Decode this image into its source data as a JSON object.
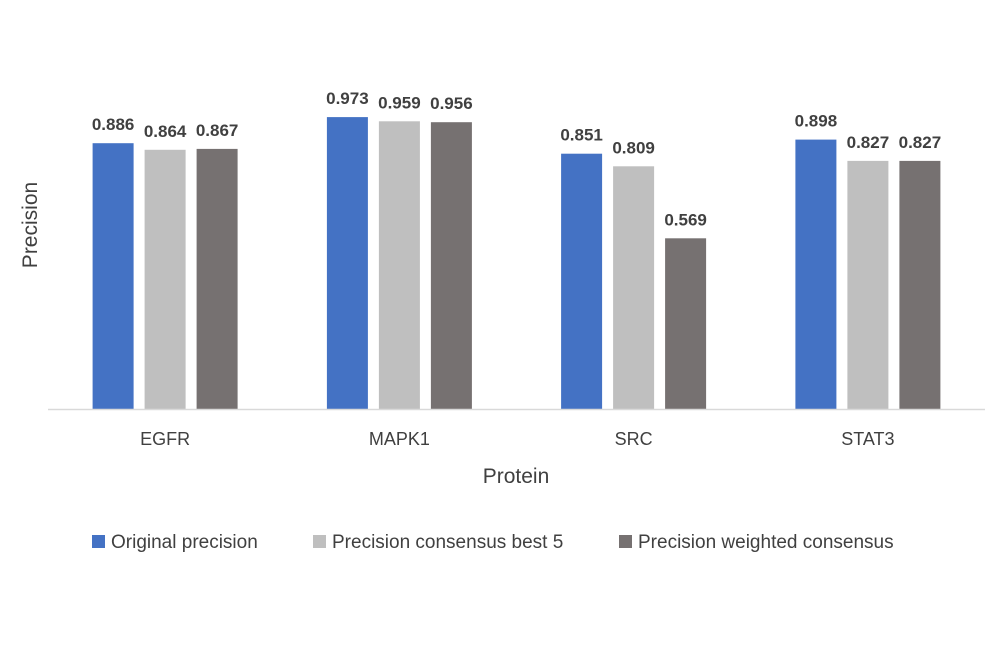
{
  "chart_data": {
    "type": "bar",
    "title": "",
    "xlabel": "Protein",
    "ylabel": "Precision",
    "categories": [
      "EGFR",
      "MAPK1",
      "SRC",
      "STAT3"
    ],
    "series": [
      {
        "name": "Original precision",
        "color": "#4472C4",
        "values": [
          0.886,
          0.973,
          0.851,
          0.898
        ]
      },
      {
        "name": "Precision consensus best 5",
        "color": "#BFBFBF",
        "values": [
          0.864,
          0.959,
          0.809,
          0.827
        ]
      },
      {
        "name": "Precision weighted consensus",
        "color": "#767171",
        "values": [
          0.867,
          0.956,
          0.569,
          0.827
        ]
      }
    ],
    "value_labels": [
      [
        "0.886",
        "0.864",
        "0.867"
      ],
      [
        "0.973",
        "0.959",
        "0.956"
      ],
      [
        "0.851",
        "0.809",
        "0.569"
      ],
      [
        "0.898",
        "0.827",
        "0.827"
      ]
    ],
    "ylim": [
      0,
      1
    ],
    "y_axis_visible": false,
    "grid": false,
    "data_labels": true,
    "legend_position": "bottom",
    "axis_color": "#D9D9D9",
    "text_color": "#404040"
  }
}
